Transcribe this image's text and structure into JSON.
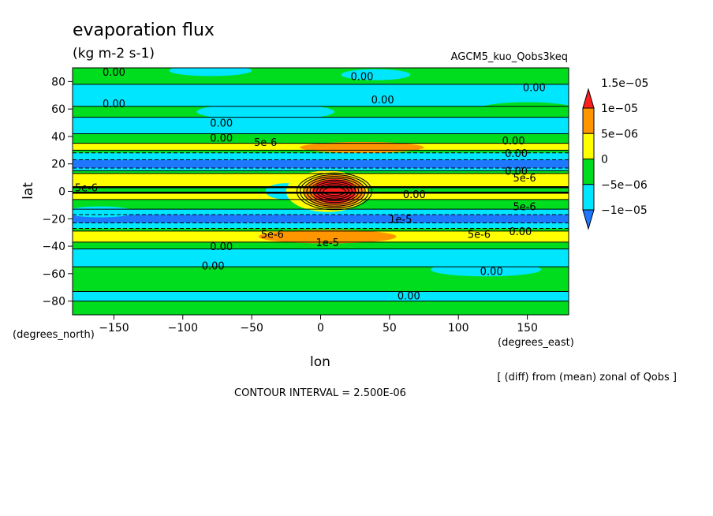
{
  "chart_data": {
    "type": "heatmap",
    "title": "evaporation flux",
    "units": "(kg m-2 s-1)",
    "run_label": "AGCM5_kuo_Qobs3keq",
    "xlabel": "lon",
    "ylabel": "lat",
    "x_unit_label": "(degrees_east)",
    "y_unit_label": "(degrees_north)",
    "xlim": [
      -180,
      180
    ],
    "ylim": [
      -90,
      90
    ],
    "x_ticks": [
      -150,
      -100,
      -50,
      0,
      50,
      100,
      150
    ],
    "x_tick_labels": [
      "−150",
      "−100",
      "−50",
      "0",
      "50",
      "100",
      "150"
    ],
    "y_ticks": [
      -80,
      -60,
      -40,
      -20,
      0,
      20,
      40,
      60,
      80
    ],
    "y_tick_labels": [
      "−80",
      "−60",
      "−40",
      "−20",
      "0",
      "20",
      "40",
      "60",
      "80"
    ],
    "colorbar": {
      "levels": [
        -1e-05,
        -5e-06,
        0,
        5e-06,
        1e-05,
        1.5e-05
      ],
      "labels": [
        "−1e−05",
        "−5e−06",
        "0",
        "5e−06",
        "1e−05",
        "1.5e−05"
      ],
      "colors": [
        "#1e78ff",
        "#00e6ff",
        "#00dc1e",
        "#ffff00",
        "#ff9600",
        "#ff1e1e"
      ]
    },
    "contour_interval": "CONTOUR INTERVAL = 2.500E-06",
    "footnote": "[ (diff) from (mean) zonal of Qobs ]",
    "contour_labels": [
      {
        "text": "0.00",
        "lon": -150,
        "lat": 87
      },
      {
        "text": "0.00",
        "lon": 30,
        "lat": 84
      },
      {
        "text": "0.00",
        "lon": 155,
        "lat": 76
      },
      {
        "text": "0.00",
        "lon": -150,
        "lat": 64
      },
      {
        "text": "0.00",
        "lon": 45,
        "lat": 67
      },
      {
        "text": "0.00",
        "lon": -72,
        "lat": 50
      },
      {
        "text": "0.00",
        "lon": -72,
        "lat": 39
      },
      {
        "text": "5e-6",
        "lon": -40,
        "lat": 36
      },
      {
        "text": "0.00",
        "lon": 140,
        "lat": 37
      },
      {
        "text": "0.00",
        "lon": 142,
        "lat": 28
      },
      {
        "text": "0.00",
        "lon": 142,
        "lat": 15
      },
      {
        "text": "5e-6",
        "lon": 148,
        "lat": 10
      },
      {
        "text": "5e-6",
        "lon": -170,
        "lat": 3
      },
      {
        "text": "0.00",
        "lon": 68,
        "lat": -2
      },
      {
        "text": "5e-6",
        "lon": 148,
        "lat": -11
      },
      {
        "text": "1e-5",
        "lon": 58,
        "lat": -20
      },
      {
        "text": "0.00",
        "lon": 145,
        "lat": -29
      },
      {
        "text": "5e-6",
        "lon": 115,
        "lat": -31
      },
      {
        "text": "5e-6",
        "lon": -35,
        "lat": -31
      },
      {
        "text": "1e-5",
        "lon": 5,
        "lat": -37
      },
      {
        "text": "0.00",
        "lon": -72,
        "lat": -40
      },
      {
        "text": "0.00",
        "lon": -78,
        "lat": -54
      },
      {
        "text": "0.00",
        "lon": 124,
        "lat": -58
      },
      {
        "text": "0.00",
        "lon": 64,
        "lat": -76
      }
    ]
  }
}
